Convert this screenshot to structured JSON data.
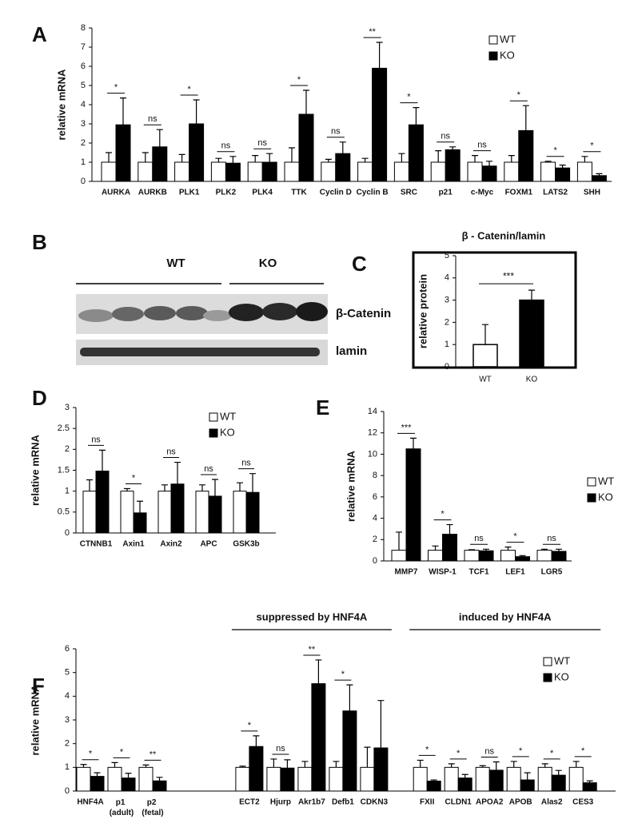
{
  "chart_data": [
    {
      "type": "grouped_bar",
      "panel_label": "A",
      "ylabel": "relative mRNA",
      "categories": [
        "AURKA",
        "AURKB",
        "PLK1",
        "PLK2",
        "PLK4",
        "TTK",
        "Cyclin D",
        "Cyclin B",
        "SRC",
        "p21",
        "c-Myc",
        "FOXM1",
        "LATS2",
        "SHH"
      ],
      "series": [
        {
          "name": "WT",
          "color": "#ffffff",
          "values": [
            1,
            1,
            1,
            1,
            1,
            1,
            1,
            1,
            1,
            1,
            1,
            1,
            1,
            1
          ],
          "errors": [
            0.5,
            0.5,
            0.4,
            0.2,
            0.35,
            0.75,
            0.15,
            0.2,
            0.45,
            0.6,
            0.35,
            0.35,
            0.05,
            0.3
          ]
        },
        {
          "name": "KO",
          "color": "#000000",
          "values": [
            2.95,
            1.8,
            3.0,
            0.95,
            1.0,
            3.5,
            1.45,
            5.9,
            2.95,
            1.65,
            0.8,
            2.65,
            0.7,
            0.3
          ],
          "errors": [
            1.4,
            0.9,
            1.25,
            0.35,
            0.45,
            1.25,
            0.6,
            1.35,
            0.9,
            0.15,
            0.25,
            1.3,
            0.15,
            0.1
          ]
        }
      ],
      "significance": [
        "*",
        "ns",
        "*",
        "ns",
        "ns",
        "*",
        "ns",
        "**",
        "*",
        "ns",
        "ns",
        "*",
        "*",
        "*"
      ],
      "ylim": [
        0,
        8
      ],
      "yticks": [
        0,
        1,
        2,
        3,
        4,
        5,
        6,
        7,
        8
      ],
      "legend": "upper right"
    },
    {
      "type": "bar",
      "panel_label": "C",
      "title": "β - Catenin/lamin",
      "ylabel": "relative protein",
      "categories": [
        "WT",
        "KO"
      ],
      "values": [
        1,
        3
      ],
      "errors": [
        0.9,
        0.45
      ],
      "colors": [
        "#ffffff",
        "#000000"
      ],
      "significance": "***",
      "ylim": [
        0,
        5
      ],
      "yticks": [
        0,
        1,
        2,
        3,
        4,
        5
      ]
    },
    {
      "type": "grouped_bar",
      "panel_label": "D",
      "ylabel": "relative mRNA",
      "categories": [
        "CTNNB1",
        "Axin1",
        "Axin2",
        "APC",
        "GSK3b"
      ],
      "series": [
        {
          "name": "WT",
          "color": "#ffffff",
          "values": [
            1,
            1,
            1,
            1,
            1
          ],
          "errors": [
            0.27,
            0.06,
            0.15,
            0.15,
            0.2
          ]
        },
        {
          "name": "KO",
          "color": "#000000",
          "values": [
            1.48,
            0.48,
            1.17,
            0.88,
            0.97
          ],
          "errors": [
            0.5,
            0.28,
            0.52,
            0.4,
            0.45
          ]
        }
      ],
      "significance": [
        "ns",
        "*",
        "ns",
        "ns",
        "ns"
      ],
      "ylim": [
        0,
        3
      ],
      "yticks": [
        0,
        0.5,
        1,
        1.5,
        2,
        2.5,
        3
      ],
      "legend": "upper right"
    },
    {
      "type": "grouped_bar",
      "panel_label": "E",
      "ylabel": "relative mRNA",
      "categories": [
        "MMP7",
        "WISP-1",
        "TCF1",
        "LEF1",
        "LGR5"
      ],
      "series": [
        {
          "name": "WT",
          "color": "#ffffff",
          "values": [
            1,
            1,
            1,
            1,
            1
          ],
          "errors": [
            1.7,
            0.4,
            0.05,
            0.3,
            0.1
          ]
        },
        {
          "name": "KO",
          "color": "#000000",
          "values": [
            10.5,
            2.5,
            0.95,
            0.4,
            0.9
          ],
          "errors": [
            1.0,
            0.9,
            0.15,
            0.1,
            0.2
          ]
        }
      ],
      "significance": [
        "***",
        "*",
        "ns",
        "*",
        "ns"
      ],
      "ylim": [
        0,
        14
      ],
      "yticks": [
        0,
        2,
        4,
        6,
        8,
        10,
        12,
        14
      ],
      "legend": "right"
    },
    {
      "type": "grouped_bar",
      "panel_label": "F",
      "ylabel": "relative mRNA",
      "annotations": [
        "suppressed by HNF4A",
        "induced by HNF4A"
      ],
      "categories": [
        "HNF4A",
        "p1 (adult)",
        "p2 (fetal)",
        "ECT2",
        "Hjurp",
        "Akr1b7",
        "Defb1",
        "CDKN3",
        "FXII",
        "CLDN1",
        "APOA2",
        "APOB",
        "Alas2",
        "CES3"
      ],
      "series": [
        {
          "name": "WT",
          "color": "#ffffff",
          "values": [
            1,
            1,
            1,
            1,
            1,
            1,
            1,
            1,
            1,
            1,
            1,
            1,
            1,
            1
          ],
          "errors": [
            0.12,
            0.2,
            0.1,
            0.05,
            0.35,
            0.25,
            0.25,
            0.85,
            0.3,
            0.15,
            0.07,
            0.25,
            0.15,
            0.25
          ]
        },
        {
          "name": "KO",
          "color": "#000000",
          "values": [
            0.62,
            0.55,
            0.43,
            1.88,
            0.97,
            4.53,
            3.38,
            1.82,
            0.42,
            0.55,
            0.88,
            0.47,
            0.67,
            0.35
          ],
          "errors": [
            0.15,
            0.2,
            0.15,
            0.45,
            0.35,
            1.0,
            1.1,
            2.0,
            0.05,
            0.15,
            0.35,
            0.3,
            0.2,
            0.08
          ]
        }
      ],
      "significance": [
        "*",
        "*",
        "**",
        "*",
        "ns",
        "**",
        "*",
        null,
        "*",
        "*",
        "ns",
        "*",
        "*",
        "*"
      ],
      "ylim": [
        0,
        6
      ],
      "yticks": [
        0,
        1,
        2,
        3,
        4,
        5,
        6
      ],
      "legend": "upper right"
    }
  ],
  "blot": {
    "panel_label": "B",
    "groups": [
      "WT",
      "KO"
    ],
    "bands": [
      "β-Catenin",
      "lamin"
    ]
  }
}
